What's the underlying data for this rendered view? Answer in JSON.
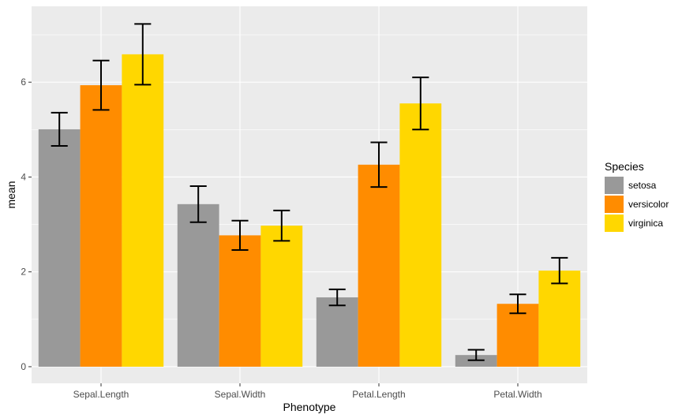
{
  "chart_data": {
    "type": "bar",
    "title": "",
    "xlabel": "Phenotype",
    "ylabel": "mean",
    "categories": [
      "Sepal.Length",
      "Sepal.Width",
      "Petal.Length",
      "Petal.Width"
    ],
    "ylim": [
      -0.35,
      7.6
    ],
    "yticks": [
      0,
      2,
      4,
      6
    ],
    "grid": true,
    "legend": {
      "title": "Species",
      "position": "right"
    },
    "series": [
      {
        "name": "setosa",
        "color": "#999999",
        "values": [
          5.006,
          3.428,
          1.462,
          0.246
        ],
        "error": [
          0.35,
          0.38,
          0.17,
          0.11
        ]
      },
      {
        "name": "versicolor",
        "color": "#FF8C00",
        "values": [
          5.936,
          2.77,
          4.26,
          1.326
        ],
        "error": [
          0.52,
          0.31,
          0.47,
          0.2
        ]
      },
      {
        "name": "virginica",
        "color": "#FFD700",
        "values": [
          6.588,
          2.974,
          5.552,
          2.026
        ],
        "error": [
          0.64,
          0.32,
          0.55,
          0.27
        ]
      }
    ]
  }
}
